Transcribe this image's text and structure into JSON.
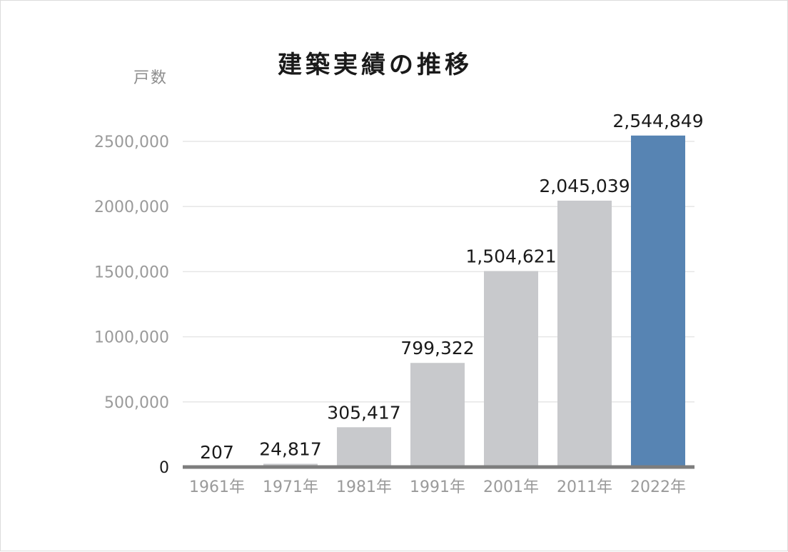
{
  "chart_data": {
    "type": "bar",
    "title": "建築実績の推移",
    "ylabel": "戸数",
    "xlabel": "",
    "categories": [
      "1961年",
      "1971年",
      "1981年",
      "1991年",
      "2001年",
      "2011年",
      "2022年"
    ],
    "values": [
      207,
      24817,
      305417,
      799322,
      1504621,
      2045039,
      2544849
    ],
    "value_labels": [
      "207",
      "24,817",
      "305,417",
      "799,322",
      "1,504,621",
      "2,045,039",
      "2,544,849"
    ],
    "ylim": [
      0,
      2500000
    ],
    "yticks": [
      {
        "value": 0,
        "label": "0"
      },
      {
        "value": 500000,
        "label": "500,000"
      },
      {
        "value": 1000000,
        "label": "1000,000"
      },
      {
        "value": 1500000,
        "label": "1500,000"
      },
      {
        "value": 2000000,
        "label": "2000,000"
      },
      {
        "value": 2500000,
        "label": "2500,000"
      }
    ],
    "grid": true,
    "legend": "none",
    "colors": {
      "bar": "#c8c9cc",
      "highlight_bar": "#5784b3",
      "baseline": "#7d7d7d",
      "grid": "#e6e6e6"
    },
    "highlight_index": 6
  }
}
